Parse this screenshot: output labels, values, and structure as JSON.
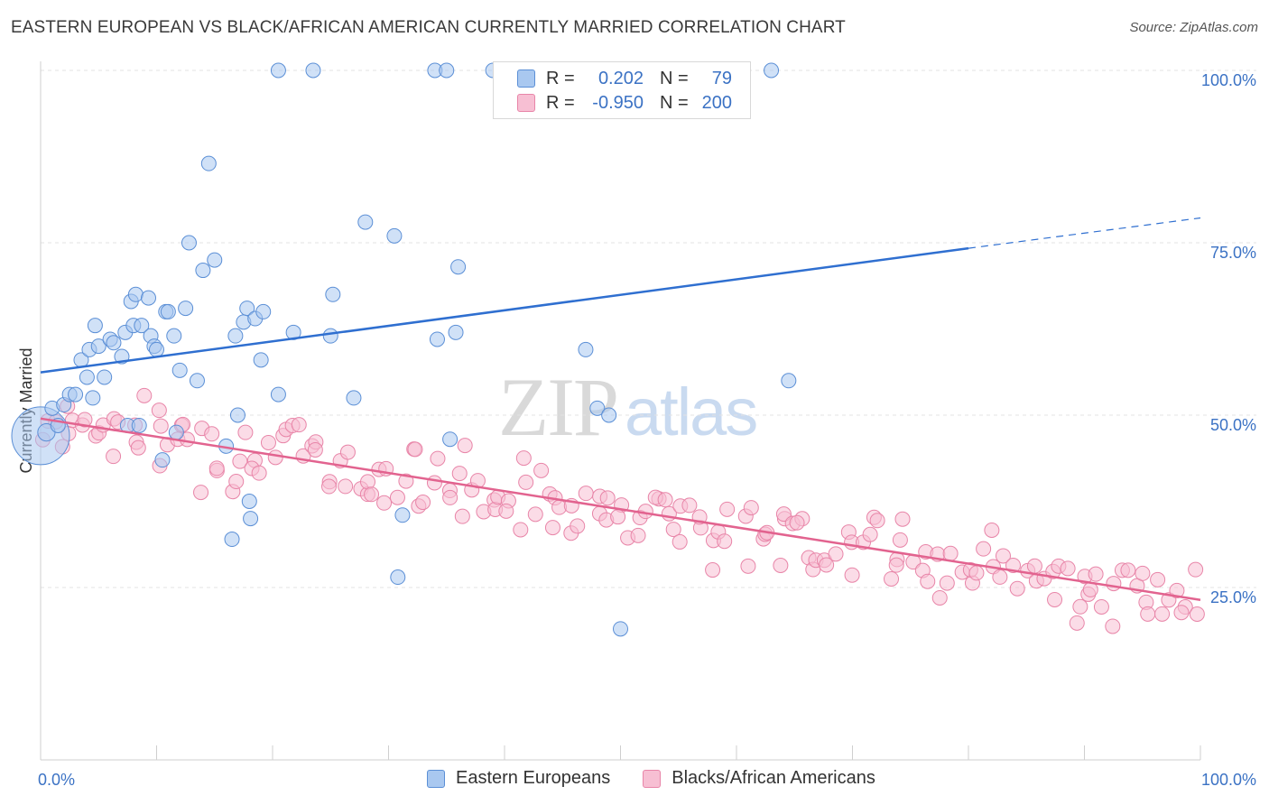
{
  "title": "EASTERN EUROPEAN VS BLACK/AFRICAN AMERICAN CURRENTLY MARRIED CORRELATION CHART",
  "source": "Source: ZipAtlas.com",
  "watermark": {
    "zip": "ZIP",
    "atlas": "atlas"
  },
  "legend_top": {
    "r_label": "R =",
    "n_label": "N =",
    "rows": [
      {
        "r": "0.202",
        "n": "79"
      },
      {
        "r": "-0.950",
        "n": "200"
      }
    ]
  },
  "legend_bottom": [
    "Eastern Europeans",
    "Blacks/African Americans"
  ],
  "colors": {
    "blue_fill": "#a9c8f0",
    "blue_stroke": "#5b8fd6",
    "blue_line": "#2f6fd0",
    "pink_fill": "#f7bfd3",
    "pink_stroke": "#e885a8",
    "pink_line": "#e2638f",
    "axis_text": "#3b72c4"
  },
  "chart_data": {
    "type": "scatter",
    "title": "EASTERN EUROPEAN VS BLACK/AFRICAN AMERICAN CURRENTLY MARRIED CORRELATION CHART",
    "xlabel": "",
    "ylabel": "Currently Married",
    "xlim": [
      0,
      100
    ],
    "ylim": [
      0,
      105
    ],
    "x_tick_labels": [
      "0.0%",
      "100.0%"
    ],
    "y_ticks": [
      25,
      50,
      75,
      100
    ],
    "y_tick_labels": [
      "25.0%",
      "50.0%",
      "75.0%",
      "100.0%"
    ],
    "grid": true,
    "legend_position": "top-center",
    "series": [
      {
        "name": "Eastern Europeans",
        "color": "#a9c8f0",
        "trend": {
          "x": [
            0,
            80
          ],
          "y": [
            56.2,
            74.2
          ],
          "dashed_to": [
            100,
            78.6
          ]
        },
        "points": [
          [
            0,
            47,
            4
          ],
          [
            0.5,
            47.5,
            1.2
          ],
          [
            1,
            51,
            1
          ],
          [
            1.5,
            48.5,
            1
          ],
          [
            2,
            51.5,
            1
          ],
          [
            2.5,
            53,
            1
          ],
          [
            3,
            53,
            1
          ],
          [
            3.5,
            58,
            1
          ],
          [
            4,
            55.5,
            1
          ],
          [
            4.2,
            59.5,
            1
          ],
          [
            4.5,
            52.5,
            1
          ],
          [
            4.7,
            63,
            1
          ],
          [
            5,
            60,
            1
          ],
          [
            5.5,
            55.5,
            1
          ],
          [
            6,
            61,
            1
          ],
          [
            6.3,
            60.5,
            1
          ],
          [
            7,
            58.5,
            1
          ],
          [
            7.3,
            62,
            1
          ],
          [
            7.5,
            48.5,
            1
          ],
          [
            7.8,
            66.5,
            1
          ],
          [
            8,
            63,
            1
          ],
          [
            8.2,
            67.5,
            1
          ],
          [
            8.5,
            48.5,
            1
          ],
          [
            8.7,
            63,
            1
          ],
          [
            9.3,
            67,
            1
          ],
          [
            9.5,
            61.5,
            1
          ],
          [
            9.8,
            60,
            1
          ],
          [
            10,
            59.5,
            1
          ],
          [
            10.5,
            43.5,
            1
          ],
          [
            10.8,
            65,
            1
          ],
          [
            11,
            65,
            1
          ],
          [
            11.5,
            61.5,
            1
          ],
          [
            11.7,
            47.5,
            1
          ],
          [
            12,
            56.5,
            1
          ],
          [
            12.5,
            65.5,
            1
          ],
          [
            12.8,
            75,
            1
          ],
          [
            13.5,
            55,
            1
          ],
          [
            14,
            71,
            1
          ],
          [
            14.5,
            86.5,
            1
          ],
          [
            15,
            72.5,
            1
          ],
          [
            16,
            45.5,
            1
          ],
          [
            16.5,
            32,
            1
          ],
          [
            16.8,
            61.5,
            1
          ],
          [
            17,
            50,
            1
          ],
          [
            17.5,
            63.5,
            1
          ],
          [
            17.8,
            65.5,
            1
          ],
          [
            18,
            37.5,
            1
          ],
          [
            18.1,
            35,
            1
          ],
          [
            18.5,
            64,
            1
          ],
          [
            19,
            58,
            1
          ],
          [
            19.2,
            65,
            1
          ],
          [
            20.5,
            100,
            1
          ],
          [
            20.5,
            53,
            1
          ],
          [
            21.8,
            62,
            1
          ],
          [
            23.5,
            100,
            1
          ],
          [
            25,
            61.5,
            1
          ],
          [
            25.2,
            67.5,
            1
          ],
          [
            27,
            52.5,
            1
          ],
          [
            28,
            78,
            1
          ],
          [
            30.5,
            76,
            1
          ],
          [
            30.8,
            26.5,
            1
          ],
          [
            31.2,
            35.5,
            1
          ],
          [
            34,
            100,
            1
          ],
          [
            34.2,
            61,
            1
          ],
          [
            35,
            100,
            1
          ],
          [
            35.3,
            46.5,
            1
          ],
          [
            35.8,
            62,
            1
          ],
          [
            36,
            71.5,
            1
          ],
          [
            39,
            100,
            1
          ],
          [
            47,
            59.5,
            1
          ],
          [
            48,
            51,
            1
          ],
          [
            49,
            50,
            1
          ],
          [
            50,
            19,
            1
          ],
          [
            63,
            100,
            1
          ],
          [
            64.5,
            55,
            1
          ]
        ]
      },
      {
        "name": "Blacks/African Americans",
        "color": "#f7bfd3",
        "trend": {
          "x": [
            0,
            100
          ],
          "y": [
            49.5,
            23.2
          ]
        }
      }
    ]
  }
}
